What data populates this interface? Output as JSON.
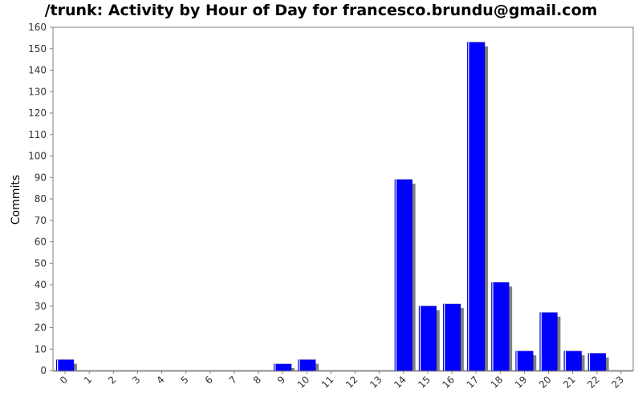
{
  "chart_data": {
    "type": "bar",
    "title": "/trunk: Activity by Hour of Day for francesco.brundu@gmail.com",
    "xlabel": "",
    "ylabel": "Commits",
    "categories": [
      "0",
      "1",
      "2",
      "3",
      "4",
      "5",
      "6",
      "7",
      "8",
      "9",
      "10",
      "11",
      "12",
      "13",
      "14",
      "15",
      "16",
      "17",
      "18",
      "19",
      "20",
      "21",
      "22",
      "23"
    ],
    "values": [
      5,
      0,
      0,
      0,
      0,
      0,
      0,
      0,
      0,
      3,
      5,
      0,
      0,
      0,
      89,
      30,
      31,
      153,
      41,
      9,
      27,
      9,
      8,
      0
    ],
    "ylim": [
      0,
      160
    ],
    "yticks": [
      0,
      10,
      20,
      30,
      40,
      50,
      60,
      70,
      80,
      90,
      100,
      110,
      120,
      130,
      140,
      150,
      160
    ],
    "grid": false,
    "legend": "none",
    "bar_color": "#0000ff",
    "shadow_color": "#808080",
    "axis_color": "#808080"
  }
}
